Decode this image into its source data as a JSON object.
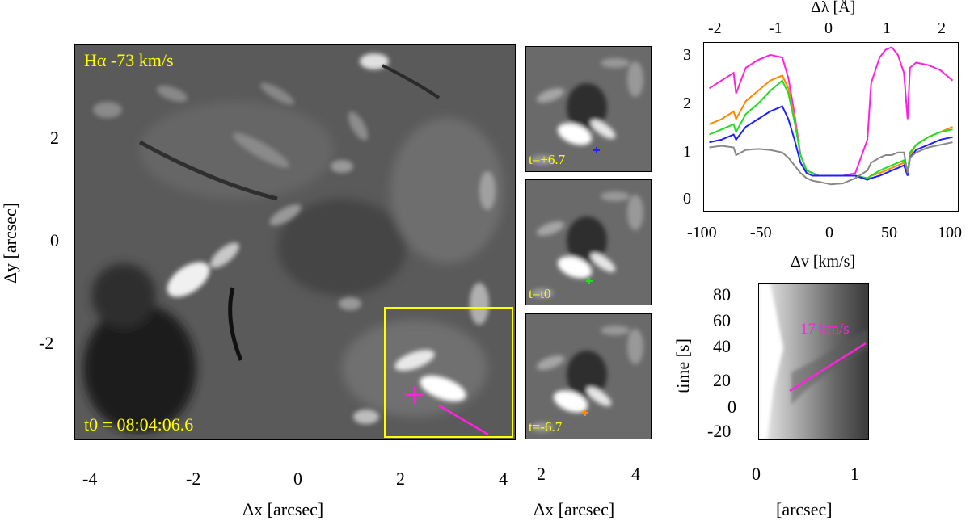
{
  "main_panel": {
    "label": "Hα -73 km/s",
    "time_label": "t0 = 08:04:06.6",
    "xlabel": "Δx [arcsec]",
    "ylabel": "Δy [arcsec]",
    "xticks": [
      "-4",
      "-2",
      "0",
      "2",
      "4"
    ],
    "yticks": [
      "2",
      "0",
      "-2"
    ]
  },
  "small_panels": {
    "labels": [
      "t=+6.7",
      "t=t0",
      "t=-6.7"
    ],
    "marker_colors": [
      "#2020ff",
      "#22dd22",
      "#ff8800"
    ],
    "xlabel": "Δx [arcsec]",
    "xticks": [
      "2",
      "4"
    ]
  },
  "spectrum_panel": {
    "top_xlabel": "Δλ [Å]",
    "top_xticks": [
      "-2",
      "-1",
      "0",
      "1",
      "2"
    ],
    "xlabel": "Δv [km/s]",
    "xticks": [
      "-100",
      "-50",
      "0",
      "50",
      "100"
    ],
    "yticks": [
      "3",
      "2",
      "1",
      "0"
    ]
  },
  "timeslice_panel": {
    "annotation": "17 km/s",
    "xlabel": "[arcsec]",
    "ylabel": "time [s]",
    "xticks": [
      "0",
      "1"
    ],
    "yticks": [
      "80",
      "60",
      "40",
      "20",
      "0",
      "-20"
    ]
  },
  "colors": {
    "highlight": "#ffff00",
    "magenta": "#ff22dd",
    "orange": "#ff8800",
    "green": "#22dd22",
    "blue": "#2020ff",
    "gray": "#888888"
  },
  "chart_data": {
    "type": "line",
    "x": [
      -100,
      -90,
      -80,
      -78,
      -70,
      -60,
      -50,
      -40,
      -35,
      -30,
      -25,
      -20,
      -15,
      -10,
      0,
      10,
      20,
      30,
      33,
      40,
      45,
      50,
      55,
      60,
      63,
      65,
      70,
      80,
      90,
      100
    ],
    "xlabel": "Δv [km/s]",
    "ylabel": "",
    "xlim": [
      -105,
      105
    ],
    "ylim": [
      -0.2,
      3.1
    ],
    "series": [
      {
        "values": [
          2.2,
          2.35,
          2.5,
          2.1,
          2.6,
          2.75,
          2.85,
          2.8,
          2.4,
          1.7,
          0.9,
          0.6,
          0.55,
          0.5,
          0.5,
          0.5,
          0.55,
          1.2,
          2.3,
          2.8,
          2.95,
          3.0,
          2.85,
          2.5,
          1.6,
          2.6,
          2.7,
          2.65,
          2.55,
          2.35
        ]
      },
      {
        "values": [
          1.5,
          1.6,
          1.75,
          1.6,
          1.95,
          2.15,
          2.35,
          2.45,
          2.2,
          1.6,
          0.9,
          0.6,
          0.55,
          0.5,
          0.5,
          0.5,
          0.5,
          0.45,
          0.5,
          0.55,
          0.6,
          0.65,
          0.7,
          0.75,
          0.5,
          0.9,
          1.1,
          1.25,
          1.35,
          1.45
        ]
      },
      {
        "values": [
          1.3,
          1.4,
          1.5,
          1.35,
          1.7,
          1.9,
          2.15,
          2.35,
          2.1,
          1.55,
          0.9,
          0.6,
          0.55,
          0.5,
          0.5,
          0.5,
          0.5,
          0.45,
          0.5,
          0.6,
          0.65,
          0.7,
          0.75,
          0.8,
          0.55,
          0.95,
          1.1,
          1.25,
          1.35,
          1.4
        ]
      },
      {
        "values": [
          1.15,
          1.2,
          1.3,
          1.2,
          1.45,
          1.6,
          1.75,
          1.85,
          1.6,
          1.2,
          0.75,
          0.55,
          0.5,
          0.5,
          0.5,
          0.5,
          0.5,
          0.42,
          0.45,
          0.5,
          0.55,
          0.6,
          0.65,
          0.7,
          0.5,
          0.85,
          1.0,
          1.1,
          1.2,
          1.25
        ]
      },
      {
        "values": [
          1.05,
          1.08,
          1.05,
          0.9,
          1.0,
          1.02,
          1.0,
          0.95,
          0.85,
          0.7,
          0.55,
          0.45,
          0.4,
          0.38,
          0.33,
          0.35,
          0.45,
          0.6,
          0.75,
          0.85,
          0.9,
          0.9,
          0.95,
          0.95,
          0.55,
          0.85,
          0.95,
          1.05,
          1.1,
          1.15
        ]
      }
    ]
  }
}
